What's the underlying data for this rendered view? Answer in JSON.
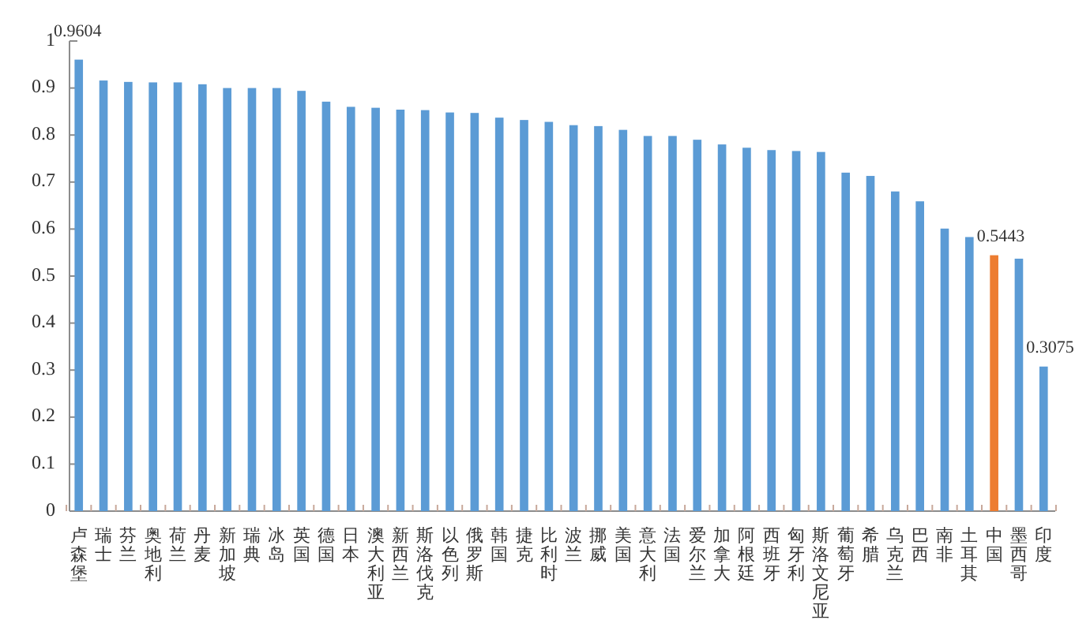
{
  "chart_data": {
    "type": "bar",
    "categories": [
      "卢森堡",
      "瑞士",
      "芬兰",
      "奥地利",
      "荷兰",
      "丹麦",
      "新加坡",
      "瑞典",
      "冰岛",
      "英国",
      "德国",
      "日本",
      "澳大利亚",
      "新西兰",
      "斯洛伐克",
      "以色列",
      "俄罗斯",
      "韩国",
      "捷克",
      "比利时",
      "波兰",
      "挪威",
      "美国",
      "意大利",
      "法国",
      "爱尔兰",
      "加拿大",
      "阿根廷",
      "西班牙",
      "匈牙利",
      "斯洛文尼亚",
      "葡萄牙",
      "希腊",
      "乌克兰",
      "巴西",
      "南非",
      "土耳其",
      "中国",
      "墨西哥",
      "印度"
    ],
    "values": [
      0.9604,
      0.916,
      0.913,
      0.912,
      0.912,
      0.908,
      0.9,
      0.9,
      0.9,
      0.894,
      0.871,
      0.86,
      0.858,
      0.854,
      0.853,
      0.848,
      0.847,
      0.837,
      0.832,
      0.828,
      0.821,
      0.819,
      0.811,
      0.798,
      0.798,
      0.79,
      0.78,
      0.773,
      0.768,
      0.766,
      0.764,
      0.72,
      0.713,
      0.68,
      0.659,
      0.601,
      0.583,
      0.5443,
      0.537,
      0.3075
    ],
    "colors": [
      "#5b9bd5",
      "#5b9bd5",
      "#5b9bd5",
      "#5b9bd5",
      "#5b9bd5",
      "#5b9bd5",
      "#5b9bd5",
      "#5b9bd5",
      "#5b9bd5",
      "#5b9bd5",
      "#5b9bd5",
      "#5b9bd5",
      "#5b9bd5",
      "#5b9bd5",
      "#5b9bd5",
      "#5b9bd5",
      "#5b9bd5",
      "#5b9bd5",
      "#5b9bd5",
      "#5b9bd5",
      "#5b9bd5",
      "#5b9bd5",
      "#5b9bd5",
      "#5b9bd5",
      "#5b9bd5",
      "#5b9bd5",
      "#5b9bd5",
      "#5b9bd5",
      "#5b9bd5",
      "#5b9bd5",
      "#5b9bd5",
      "#5b9bd5",
      "#5b9bd5",
      "#5b9bd5",
      "#5b9bd5",
      "#5b9bd5",
      "#5b9bd5",
      "#ed7d31",
      "#5b9bd5",
      "#5b9bd5"
    ],
    "value_labels": [
      "0.9604",
      null,
      null,
      null,
      null,
      null,
      null,
      null,
      null,
      null,
      null,
      null,
      null,
      null,
      null,
      null,
      null,
      null,
      null,
      null,
      null,
      null,
      null,
      null,
      null,
      null,
      null,
      null,
      null,
      null,
      null,
      null,
      null,
      null,
      null,
      null,
      null,
      "0.5443",
      null,
      "0.3075"
    ],
    "ylim": [
      0,
      1
    ],
    "yticks": [
      0,
      0.1,
      0.2,
      0.3,
      0.4,
      0.5,
      0.6,
      0.7,
      0.8,
      0.9,
      1
    ]
  }
}
